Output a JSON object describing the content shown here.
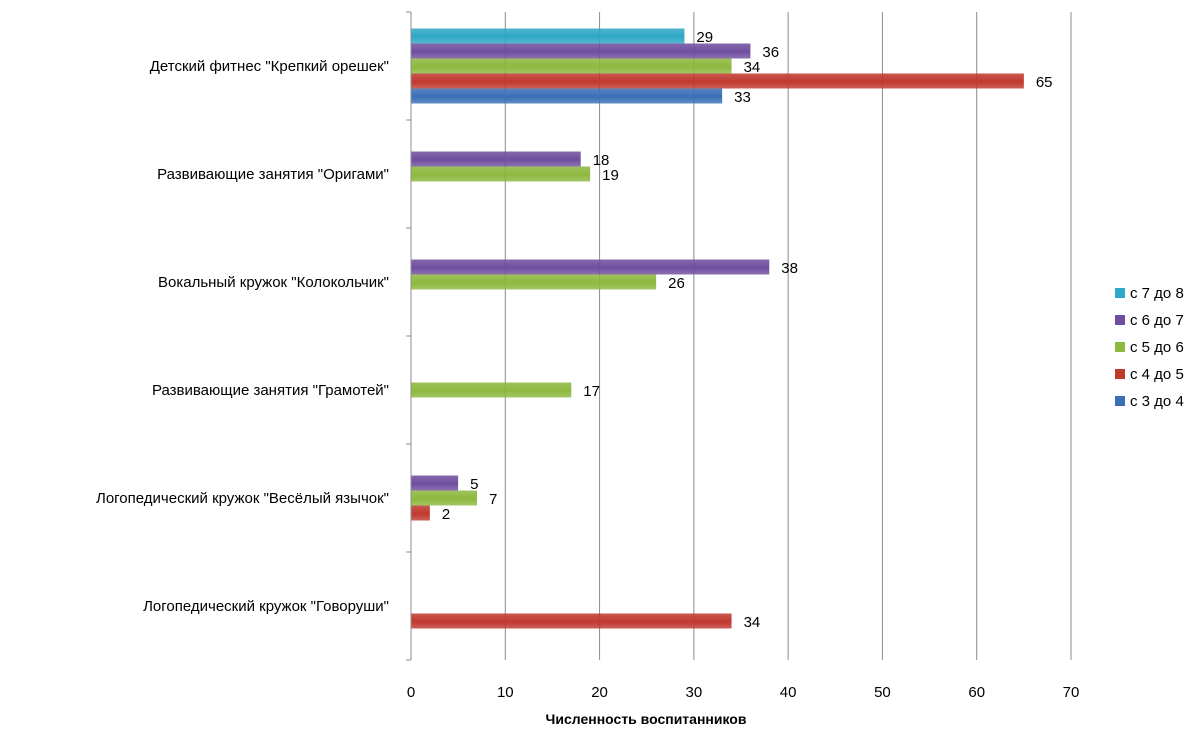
{
  "chart_data": {
    "type": "bar",
    "orientation": "horizontal",
    "xlabel": "Численность воспитанников",
    "xlim": [
      0,
      70
    ],
    "xticks": [
      0,
      10,
      20,
      30,
      40,
      50,
      60,
      70
    ],
    "grid": true,
    "legend_position": "right",
    "categories": [
      "Детский фитнес \"Крепкий орешек\"",
      "Развивающие занятия \"Оригами\"",
      "Вокальный кружок \"Колокольчик\"",
      "Развивающие занятия \"Грамотей\"",
      "Логопедический кружок \"Весёлый язычок\"",
      "Логопедический кружок \"Говоруши\""
    ],
    "series": [
      {
        "name": "с 3 до 4",
        "color": "#3a6fb7",
        "values": [
          33,
          null,
          null,
          null,
          null,
          null
        ]
      },
      {
        "name": "с 4 до 5",
        "color": "#c0392f",
        "values": [
          65,
          null,
          null,
          null,
          2,
          34
        ]
      },
      {
        "name": "с 5 до 6",
        "color": "#8db83f",
        "values": [
          34,
          19,
          26,
          17,
          7,
          null
        ]
      },
      {
        "name": "с 6 до 7",
        "color": "#6f4e9e",
        "values": [
          36,
          18,
          38,
          null,
          5,
          null
        ]
      },
      {
        "name": "с 7 до 8",
        "color": "#2fa7c6",
        "values": [
          29,
          null,
          null,
          null,
          null,
          null
        ]
      }
    ],
    "legend_order": [
      "с 7 до 8",
      "с 6 до 7",
      "с 5 до 6",
      "с 4 до 5",
      "с 3 до 4"
    ]
  }
}
